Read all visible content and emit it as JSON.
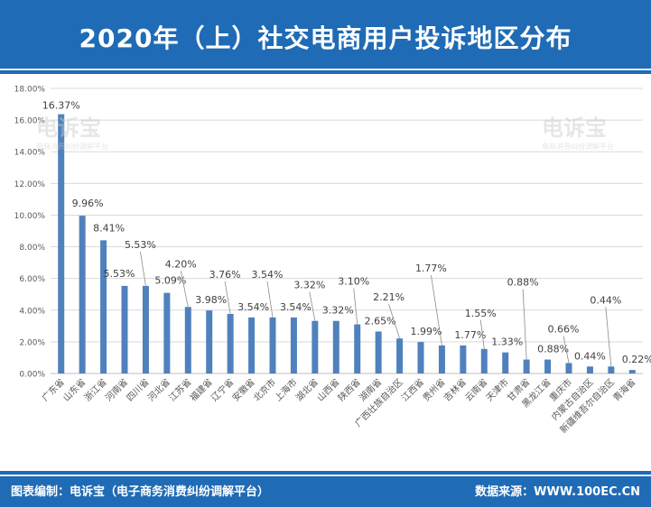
{
  "header": {
    "title": "2020年（上）社交电商用户投诉地区分布"
  },
  "footer": {
    "left": "图表编制：电诉宝（电子商务消费纠纷调解平台）",
    "right": "数据来源：WWW.100EC.CN"
  },
  "watermark": {
    "main": "电诉宝",
    "sub": "电商消费纠纷调解平台"
  },
  "colors": {
    "bar": "#4f81bd",
    "header": "#1f6bb5",
    "grid": "#d9d9d9",
    "axis": "#595959"
  },
  "chart_data": {
    "type": "bar",
    "categories": [
      "广东省",
      "山东省",
      "浙江省",
      "河南省",
      "四川省",
      "河北省",
      "江苏省",
      "福建省",
      "辽宁省",
      "安徽省",
      "北京市",
      "上海市",
      "湖北省",
      "山西省",
      "陕西省",
      "湖南省",
      "广西壮族自治区",
      "江西省",
      "贵州省",
      "吉林省",
      "云南省",
      "天津市",
      "甘肃省",
      "黑龙江省",
      "重庆市",
      "内蒙古自治区",
      "新疆维吾尔自治区",
      "青海省"
    ],
    "values": [
      16.37,
      9.96,
      8.41,
      5.53,
      5.53,
      5.09,
      4.2,
      3.98,
      3.76,
      3.54,
      3.54,
      3.54,
      3.32,
      3.32,
      3.1,
      2.65,
      2.21,
      1.99,
      1.77,
      1.77,
      1.55,
      1.33,
      0.88,
      0.88,
      0.66,
      0.44,
      0.44,
      0.22
    ],
    "value_labels": [
      "16.37%",
      "9.96%",
      "8.41%",
      "5.53%",
      "5.53%",
      "5.09%",
      "4.20%",
      "3.98%",
      "3.76%",
      "3.54%",
      "3.54%",
      "3.54%",
      "3.32%",
      "3.32%",
      "3.10%",
      "2.65%",
      "2.21%",
      "1.99%",
      "1.77%",
      "1.77%",
      "1.55%",
      "1.33%",
      "0.88%",
      "0.88%",
      "0.66%",
      "0.44%",
      "0.44%",
      "0.22%"
    ],
    "ylim": [
      0,
      18
    ],
    "yticks": [
      "0.00%",
      "2.00%",
      "4.00%",
      "6.00%",
      "8.00%",
      "10.00%",
      "12.00%",
      "14.00%",
      "16.00%",
      "18.00%"
    ],
    "grid": true,
    "title": "2020年（上）社交电商用户投诉地区分布"
  }
}
